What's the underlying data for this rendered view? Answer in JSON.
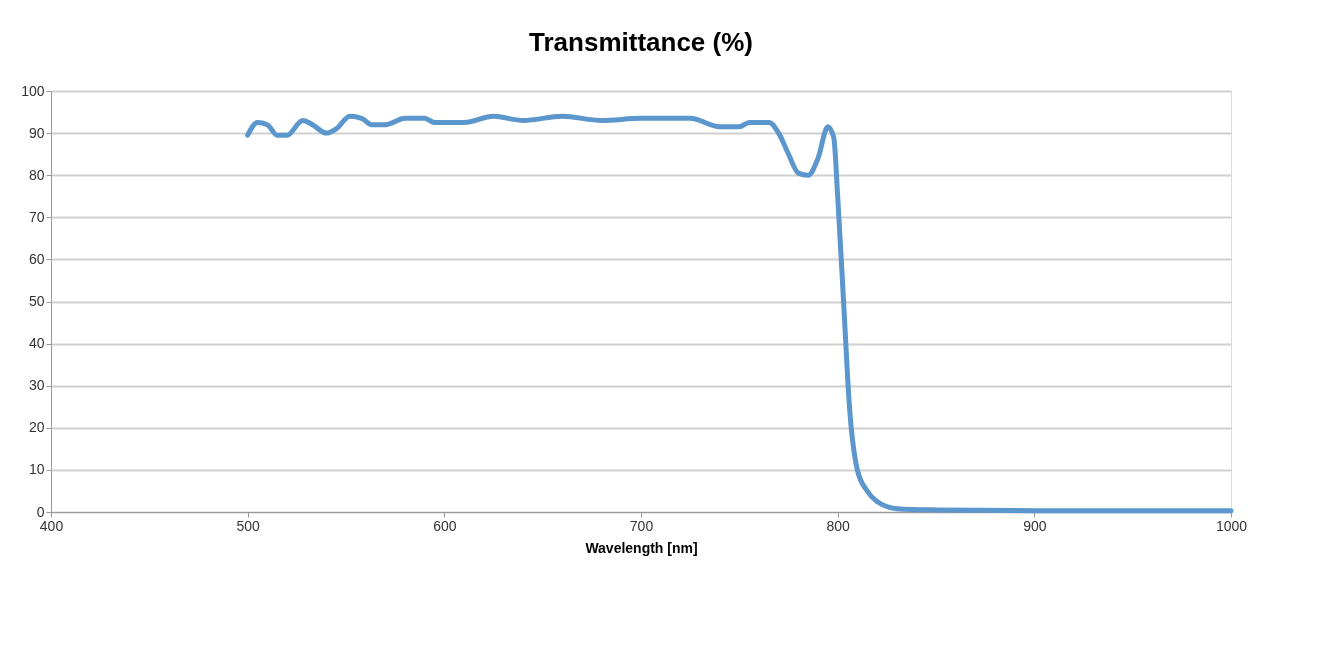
{
  "chart_data": {
    "type": "line",
    "title": "Transmittance (%)",
    "xlabel": "Wavelength [nm]",
    "x": [
      500,
      505,
      510,
      515,
      520,
      528,
      533,
      540,
      545,
      552,
      558,
      563,
      570,
      580,
      590,
      595,
      610,
      625,
      640,
      660,
      680,
      700,
      725,
      740,
      750,
      755,
      765,
      770,
      775,
      780,
      785,
      790,
      795,
      798,
      800,
      803,
      806,
      810,
      815,
      820,
      830,
      850,
      900,
      1000
    ],
    "series": [
      {
        "color": "#5b96cc",
        "values": [
          89.5,
          92.5,
          92,
          89.5,
          89.5,
          93,
          92,
          90,
          91,
          94,
          93.5,
          92,
          92,
          93.5,
          93.5,
          92.5,
          92.5,
          94,
          93,
          94,
          93,
          93.5,
          93.5,
          91.5,
          91.5,
          92.5,
          92.5,
          90,
          85,
          80.5,
          80,
          84,
          91.5,
          89,
          75,
          50,
          25,
          10,
          5,
          2.5,
          0.8,
          0.5,
          0.3,
          0.3
        ]
      }
    ],
    "xlim": [
      400,
      1000
    ],
    "xticks": [
      400,
      500,
      600,
      700,
      800,
      900,
      1000
    ],
    "ylim": [
      0,
      100
    ],
    "yticks": [
      0,
      10,
      20,
      30,
      40,
      50,
      60,
      70,
      80,
      90,
      100
    ],
    "grid": "y",
    "legend": false,
    "marker": "none",
    "line_style": "solid"
  }
}
